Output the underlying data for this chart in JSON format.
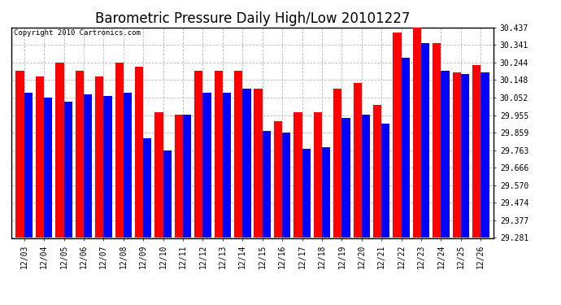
{
  "title": "Barometric Pressure Daily High/Low 20101227",
  "copyright": "Copyright 2010 Cartronics.com",
  "dates": [
    "12/03",
    "12/04",
    "12/05",
    "12/06",
    "12/07",
    "12/08",
    "12/09",
    "12/10",
    "12/11",
    "12/12",
    "12/13",
    "12/14",
    "12/15",
    "12/16",
    "12/17",
    "12/18",
    "12/19",
    "12/20",
    "12/21",
    "12/22",
    "12/23",
    "12/24",
    "12/25",
    "12/26"
  ],
  "highs": [
    30.2,
    30.17,
    30.244,
    30.2,
    30.17,
    30.244,
    30.22,
    29.97,
    29.96,
    30.2,
    30.2,
    30.2,
    30.1,
    29.92,
    29.97,
    29.97,
    30.1,
    30.13,
    30.01,
    30.41,
    30.46,
    30.35,
    30.19,
    30.23
  ],
  "lows": [
    30.08,
    30.05,
    30.03,
    30.07,
    30.06,
    30.08,
    29.83,
    29.76,
    29.96,
    30.08,
    30.08,
    30.1,
    29.87,
    29.86,
    29.77,
    29.78,
    29.94,
    29.96,
    29.91,
    30.27,
    30.35,
    30.2,
    30.18,
    30.19
  ],
  "high_color": "#ff0000",
  "low_color": "#0000ff",
  "bg_color": "#ffffff",
  "grid_color": "#bbbbbb",
  "ymin": 29.281,
  "ymax": 30.437,
  "yticks": [
    29.281,
    29.377,
    29.474,
    29.57,
    29.666,
    29.763,
    29.859,
    29.955,
    30.052,
    30.148,
    30.244,
    30.341,
    30.437
  ],
  "title_fontsize": 12,
  "copyright_fontsize": 6.5,
  "tick_fontsize": 7,
  "bar_width": 0.42
}
